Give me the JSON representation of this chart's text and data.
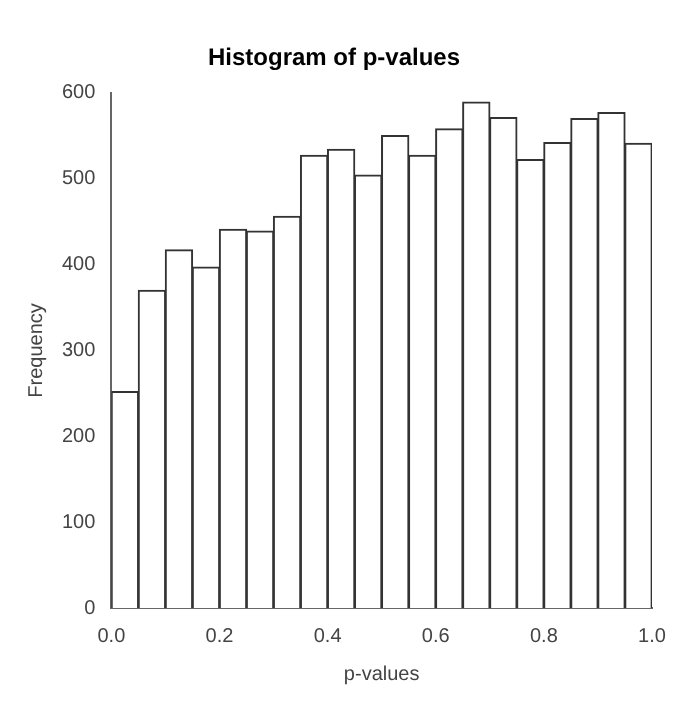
{
  "chart_data": {
    "type": "histogram",
    "title": "Histogram of p-values",
    "xlabel": "p-values",
    "ylabel": "Frequency",
    "bins": [
      0,
      0.05,
      0.1,
      0.15,
      0.2,
      0.25,
      0.3,
      0.35,
      0.4,
      0.45,
      0.5,
      0.55,
      0.6,
      0.65,
      0.7,
      0.75,
      0.8,
      0.85,
      0.9,
      0.95,
      1
    ],
    "values": [
      252,
      370,
      417,
      397,
      441,
      439,
      456,
      527,
      534,
      504,
      550,
      527,
      558,
      589,
      571,
      522,
      542,
      570,
      577,
      541
    ],
    "color": "#ffffff",
    "xlim": [
      0,
      1
    ],
    "xticks": [
      {
        "value": 0,
        "label": "0.0"
      },
      0.2,
      0.4,
      0.6,
      0.8,
      {
        "value": 1,
        "label": "1.0"
      }
    ],
    "ylim": [
      0,
      600
    ],
    "yticks": [
      0,
      100,
      200,
      300,
      400,
      500,
      600
    ],
    "grid": false
  }
}
